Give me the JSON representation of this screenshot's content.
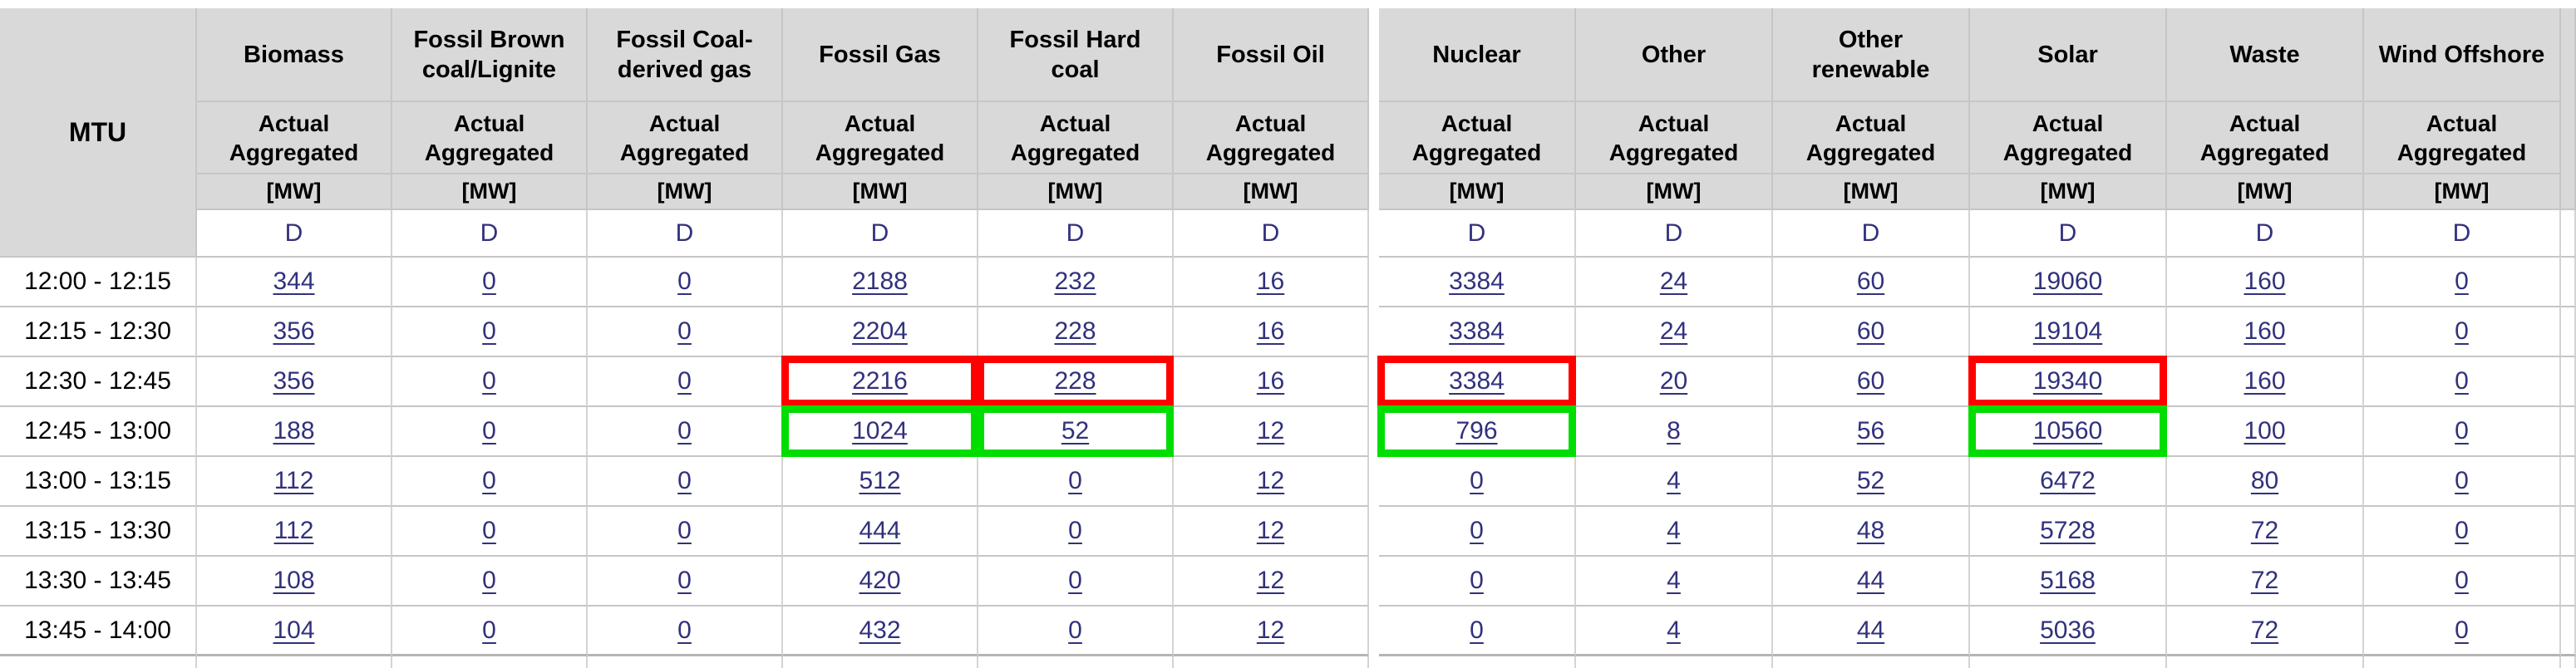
{
  "table": {
    "mtu_label": "MTU",
    "labels": {
      "actual_aggregated": "Actual Aggregated",
      "unit": "[MW]",
      "resolution": "D"
    },
    "columns": [
      {
        "label": "Biomass"
      },
      {
        "label": "Fossil Brown coal/Lignite"
      },
      {
        "label": "Fossil Coal-derived gas"
      },
      {
        "label": "Fossil Gas"
      },
      {
        "label": "Fossil Hard coal"
      },
      {
        "label": "Fossil Oil"
      },
      {
        "label": "Nuclear"
      },
      {
        "label": "Other"
      },
      {
        "label": "Other renewable"
      },
      {
        "label": "Solar"
      },
      {
        "label": "Waste"
      },
      {
        "label": "Wind Offshore"
      }
    ],
    "rows": [
      {
        "time": "12:00 - 12:15",
        "values": [
          "344",
          "0",
          "0",
          "2188",
          "232",
          "16",
          "3384",
          "24",
          "60",
          "19060",
          "160",
          "0"
        ]
      },
      {
        "time": "12:15 - 12:30",
        "values": [
          "356",
          "0",
          "0",
          "2204",
          "228",
          "16",
          "3384",
          "24",
          "60",
          "19104",
          "160",
          "0"
        ]
      },
      {
        "time": "12:30 - 12:45",
        "values": [
          "356",
          "0",
          "0",
          "2216",
          "228",
          "16",
          "3384",
          "20",
          "60",
          "19340",
          "160",
          "0"
        ],
        "highlight_red": [
          3,
          4,
          6,
          9
        ]
      },
      {
        "time": "12:45 - 13:00",
        "values": [
          "188",
          "0",
          "0",
          "1024",
          "52",
          "12",
          "796",
          "8",
          "56",
          "10560",
          "100",
          "0"
        ],
        "highlight_green": [
          3,
          4,
          6,
          9
        ]
      },
      {
        "time": "13:00 - 13:15",
        "values": [
          "112",
          "0",
          "0",
          "512",
          "0",
          "12",
          "0",
          "4",
          "52",
          "6472",
          "80",
          "0"
        ]
      },
      {
        "time": "13:15 - 13:30",
        "values": [
          "112",
          "0",
          "0",
          "444",
          "0",
          "12",
          "0",
          "4",
          "48",
          "5728",
          "72",
          "0"
        ]
      },
      {
        "time": "13:30 - 13:45",
        "values": [
          "108",
          "0",
          "0",
          "420",
          "0",
          "12",
          "0",
          "4",
          "44",
          "5168",
          "72",
          "0"
        ]
      },
      {
        "time": "13:45 - 14:00",
        "values": [
          "104",
          "0",
          "0",
          "432",
          "0",
          "12",
          "0",
          "4",
          "44",
          "5036",
          "72",
          "0"
        ]
      }
    ],
    "colors": {
      "header_bg": "#d9d9d9",
      "link": "#31317d",
      "highlight_red": "#ff0000",
      "highlight_green": "#00dd00"
    }
  }
}
